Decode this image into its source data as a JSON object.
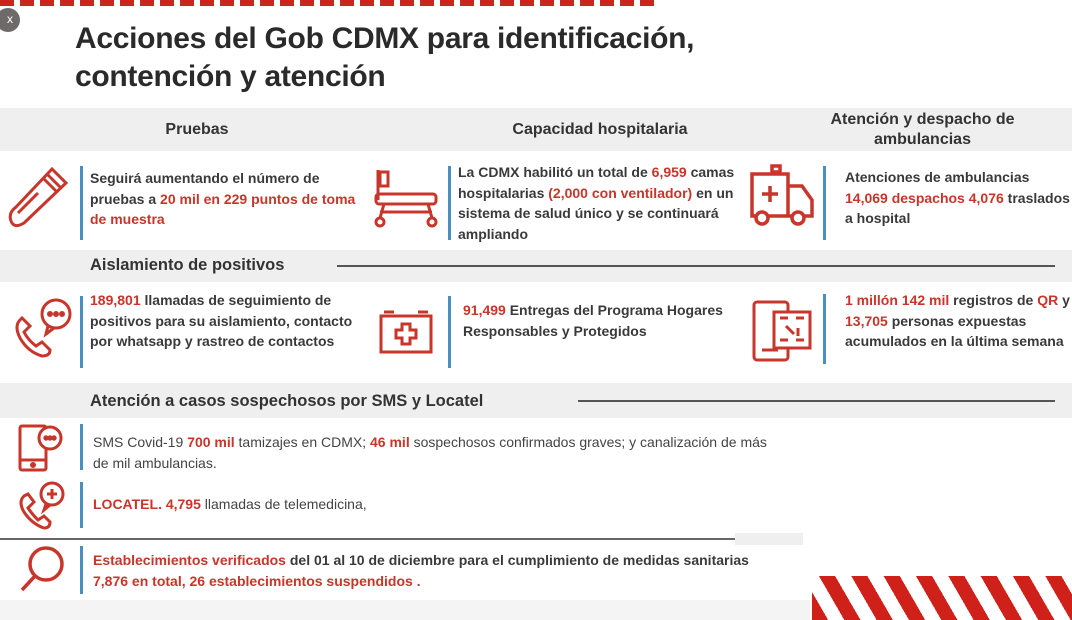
{
  "close_label": "x",
  "title": [
    "Acciones del Gob CDMX para identificación,",
    "contención y atención"
  ],
  "accent_color": "#c8352a",
  "columns": [
    "Pruebas",
    "Capacidad hospitalaria",
    "Atención y despacho de ambulancias"
  ],
  "sections": [
    "Aislamiento de positivos",
    "Atención a casos sospechosos por SMS y Locatel"
  ],
  "items": {
    "pruebas": {
      "icon": "test-tube-icon",
      "segments": [
        {
          "text": "Seguirá aumentando el número de pruebas a ",
          "hl": false
        },
        {
          "text": "20 mil en 229 puntos de toma de muestra",
          "hl": true
        }
      ]
    },
    "camas": {
      "icon": "hospital-bed-icon",
      "segments": [
        {
          "text": "La CDMX habilitó un total de ",
          "hl": false
        },
        {
          "text": "6,959",
          "hl": true
        },
        {
          "text": " camas hospitalarias ",
          "hl": false
        },
        {
          "text": "(2,000 con ventilador)",
          "hl": true
        },
        {
          "text": " en un sistema de salud único y se continuará ampliando",
          "hl": false
        }
      ]
    },
    "ambulancias": {
      "icon": "ambulance-icon",
      "segments": [
        {
          "text": "Atenciones de ambulancias ",
          "hl": false
        },
        {
          "text": "14,069 despachos",
          "hl": true
        },
        {
          "text": " ",
          "hl": false
        },
        {
          "text": "4,076",
          "hl": true
        },
        {
          "text": "  traslados a hospital",
          "hl": false
        }
      ]
    },
    "llamadas": {
      "icon": "phone-chat-icon",
      "segments": [
        {
          "text": "189,801",
          "hl": true
        },
        {
          "text": " llamadas de seguimiento de positivos para su aislamiento, contacto por whatsapp y rastreo de contactos",
          "hl": false
        }
      ]
    },
    "entregas": {
      "icon": "first-aid-kit-icon",
      "segments": [
        {
          "text": "91,499",
          "hl": true
        },
        {
          "text": "  Entregas del Programa Hogares Responsables y Protegidos",
          "hl": false
        }
      ]
    },
    "qr": {
      "icon": "qr-phone-icon",
      "segments": [
        {
          "text": "1 millón 142 mil",
          "hl": true
        },
        {
          "text": " registros de ",
          "hl": false
        },
        {
          "text": "QR",
          "hl": true
        },
        {
          "text": " y ",
          "hl": false
        },
        {
          "text": "13,705",
          "hl": true
        },
        {
          "text": " personas expuestas acumulados en la última semana",
          "hl": false
        }
      ]
    },
    "sms": {
      "icon": "sms-phone-icon",
      "segments": [
        {
          "text": "SMS Covid-19 ",
          "hl": false
        },
        {
          "text": "700 mil",
          "hl": true
        },
        {
          "text": " tamizajes en CDMX; ",
          "hl": false
        },
        {
          "text": "46 mil",
          "hl": true
        },
        {
          "text": " sospechosos confirmados graves; y canalización de más de mil ambulancias.",
          "hl": false
        }
      ]
    },
    "locatel": {
      "icon": "phone-medical-icon",
      "segments": [
        {
          "text": "LOCATEL. 4,795",
          "hl": true
        },
        {
          "text": " llamadas de telemedicina,",
          "hl": false
        }
      ]
    },
    "establecimientos": {
      "icon": "magnifier-icon",
      "segments": [
        {
          "text": "Establecimientos verificados",
          "hl": true
        },
        {
          "text": " del 01 al 10 de diciembre para el cumplimiento de medidas sanitarias ",
          "hl": false
        },
        {
          "text": "7,876 en total, 26 establecimientos suspendidos .",
          "hl": true
        }
      ]
    }
  }
}
